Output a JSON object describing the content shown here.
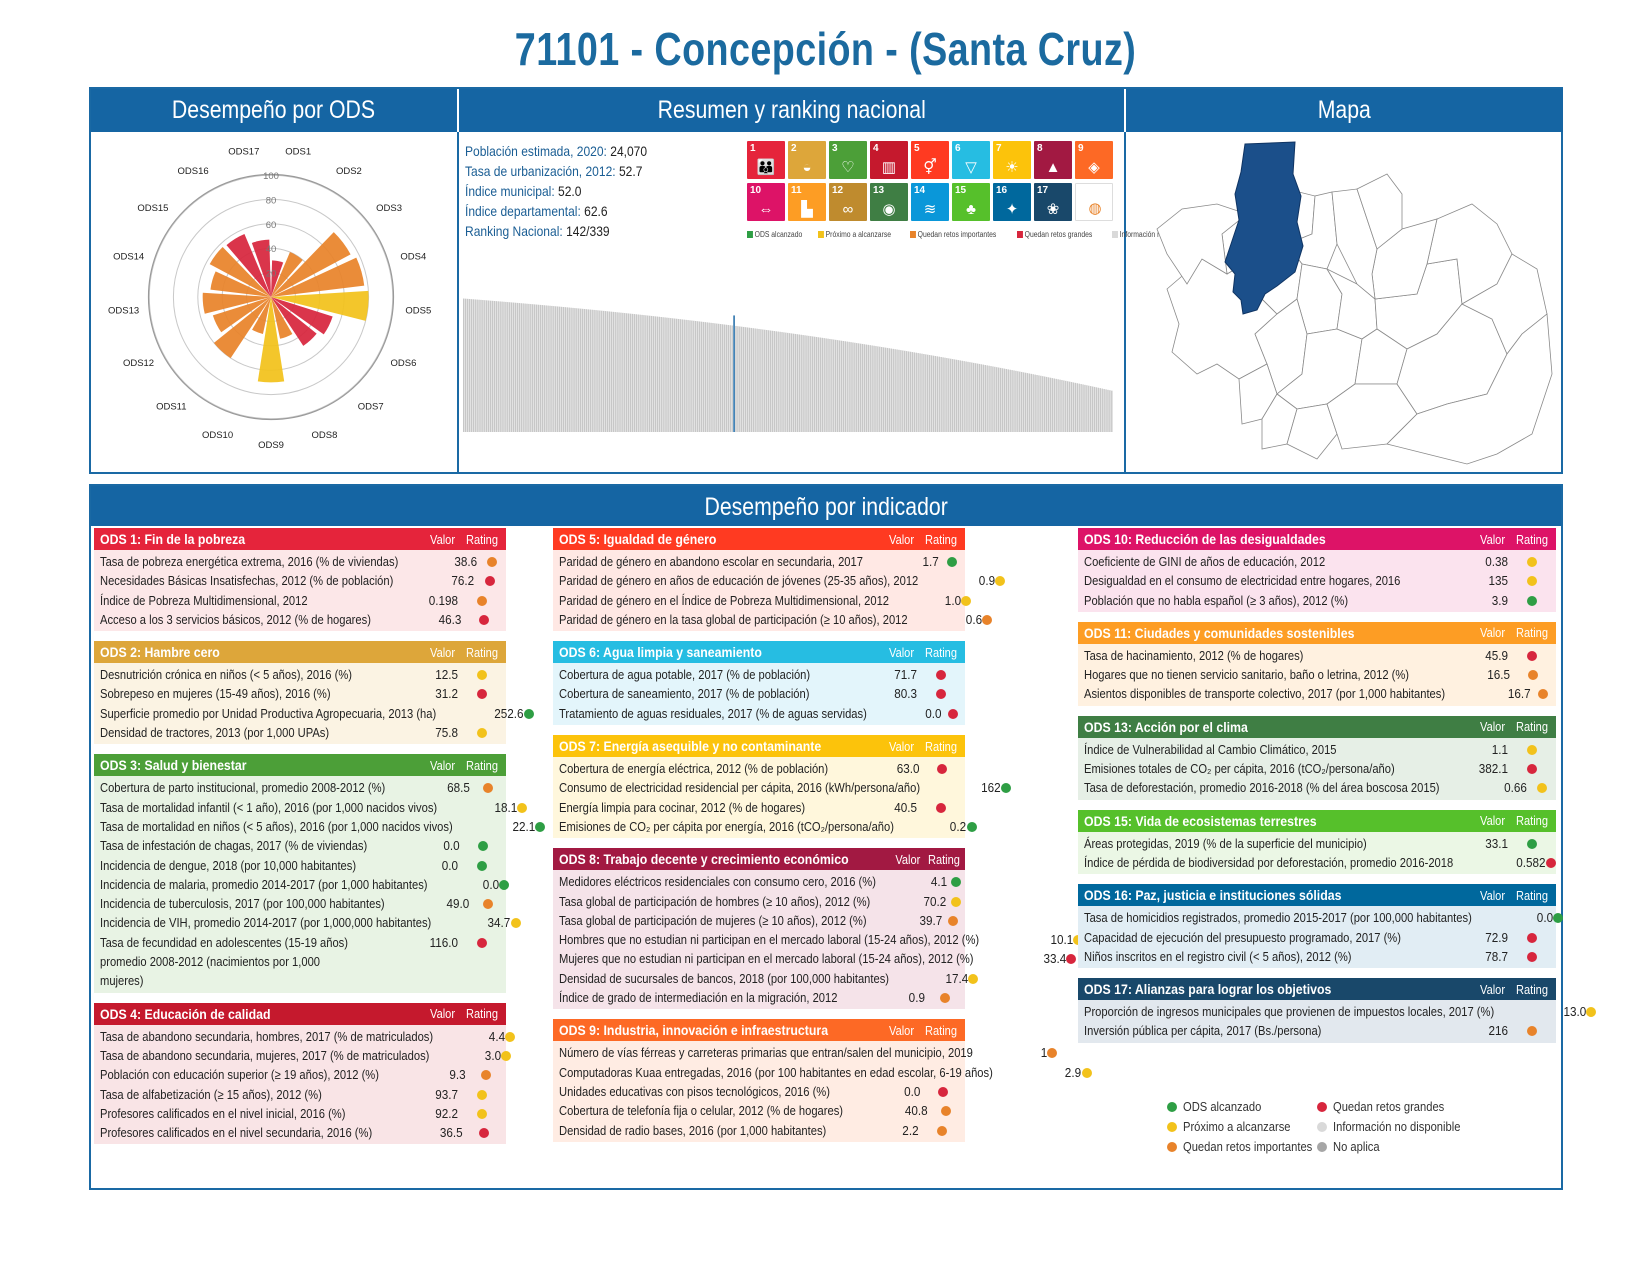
{
  "title": "71101 - Concepción - (Santa Cruz)",
  "top_sections": {
    "ods": "Desempeño por ODS",
    "summary": "Resumen y ranking nacional",
    "map": "Mapa"
  },
  "bottom_section_title": "Desempeño por indicador",
  "summary": {
    "rows": [
      {
        "label": "Población estimada, 2020:",
        "value": " 24,070"
      },
      {
        "label": "Tasa de urbanización, 2012:",
        "value": " 52.7"
      },
      {
        "label": "Índice municipal:",
        "value": " 52.0"
      },
      {
        "label": "Índice departamental:",
        "value": " 62.6"
      },
      {
        "label": "Ranking Nacional:",
        "value": " 142/339"
      }
    ]
  },
  "colors": {
    "brand_blue": "#1565a3",
    "green": "#2e9e44",
    "yellow": "#f2c21b",
    "orange": "#e8832a",
    "red": "#d7263d",
    "light_gray": "#d9d9d9",
    "gray": "#a6a6a6"
  },
  "sdg_tiles": [
    {
      "num": "1",
      "color": "#e5243b",
      "icon": "people-icon",
      "glyph": "👪"
    },
    {
      "num": "2",
      "color": "#dda63a",
      "icon": "bowl-icon",
      "glyph": "◒"
    },
    {
      "num": "3",
      "color": "#4c9f38",
      "icon": "heartbeat-icon",
      "glyph": "♡"
    },
    {
      "num": "4",
      "color": "#c5192d",
      "icon": "book-icon",
      "glyph": "▥"
    },
    {
      "num": "5",
      "color": "#ff3a21",
      "icon": "gender-icon",
      "glyph": "⚥"
    },
    {
      "num": "6",
      "color": "#26bde2",
      "icon": "water-icon",
      "glyph": "▽"
    },
    {
      "num": "7",
      "color": "#fcc30b",
      "icon": "sun-icon",
      "glyph": "☀"
    },
    {
      "num": "8",
      "color": "#a21942",
      "icon": "growth-chart-icon",
      "glyph": "▲"
    },
    {
      "num": "9",
      "color": "#fd6925",
      "icon": "cubes-icon",
      "glyph": "◈"
    },
    {
      "num": "10",
      "color": "#dd1367",
      "icon": "equality-icon",
      "glyph": "⇔"
    },
    {
      "num": "11",
      "color": "#fd9d24",
      "icon": "city-icon",
      "glyph": "▙"
    },
    {
      "num": "12",
      "color": "#bf8b2e",
      "icon": "infinity-icon",
      "glyph": "∞"
    },
    {
      "num": "13",
      "color": "#3f7e44",
      "icon": "eye-icon",
      "glyph": "◉"
    },
    {
      "num": "14",
      "color": "#0a97d9",
      "icon": "fish-icon",
      "glyph": "≋"
    },
    {
      "num": "15",
      "color": "#56c02b",
      "icon": "tree-icon",
      "glyph": "♣"
    },
    {
      "num": "16",
      "color": "#00689d",
      "icon": "dove-icon",
      "glyph": "✦"
    },
    {
      "num": "17",
      "color": "#19486a",
      "icon": "flower-icon",
      "glyph": "❀"
    },
    {
      "num": "",
      "color": "#ffffff",
      "icon": "sdg-wheel-icon",
      "glyph": "◍"
    }
  ],
  "sdg_legend": [
    {
      "label": "ODS alcanzado",
      "color": "#2e9e44"
    },
    {
      "label": "Próximo a alcanzarse",
      "color": "#f2c21b"
    },
    {
      "label": "Quedan retos importantes",
      "color": "#e8832a"
    },
    {
      "label": "Quedan retos grandes",
      "color": "#d7263d"
    },
    {
      "label": "Información no disponible",
      "color": "#d9d9d9"
    },
    {
      "label": "No aplica",
      "color": "#a6a6a6"
    }
  ],
  "chart_data": [
    {
      "type": "radar-bar",
      "title": "Desempeño por ODS",
      "rticks": [
        "20",
        "40",
        "60",
        "80",
        "100"
      ],
      "rlim": [
        0,
        100
      ],
      "categories": [
        "ODS1",
        "ODS2",
        "ODS3",
        "ODS4",
        "ODS5",
        "ODS6",
        "ODS7",
        "ODS8",
        "ODS9",
        "ODS10",
        "ODS11",
        "ODS12",
        "ODS13",
        "ODS14",
        "ODS15",
        "ODS16",
        "ODS17"
      ],
      "values": [
        30,
        40,
        74,
        77,
        80,
        53,
        48,
        35,
        70,
        31,
        60,
        50,
        56,
        50,
        57,
        56,
        47
      ],
      "colors": [
        "#d7263d",
        "#e8832a",
        "#e8832a",
        "#e8832a",
        "#f2c21b",
        "#d7263d",
        "#d7263d",
        "#e8832a",
        "#f2c21b",
        "#e8832a",
        "#e8832a",
        "#e8832a",
        "#e8832a",
        "#e8832a",
        "#e8832a",
        "#d7263d",
        "#d7263d"
      ]
    },
    {
      "type": "bar",
      "title": "Ranking nacional",
      "n_municipalities": 339,
      "highlight_rank": 142,
      "ylim": [
        0,
        100
      ],
      "value_range": [
        22,
        71
      ],
      "highlight_value": 52
    }
  ],
  "panels": {
    "col1": [
      {
        "title": "ODS 1: Fin de la pobreza",
        "color": "#e5243b",
        "bg": "#fce7e8",
        "rows": [
          {
            "name": "Tasa de pobreza energética extrema, 2016 (% de viviendas)",
            "value": "38.6",
            "rating": "orange"
          },
          {
            "name": "Necesidades Básicas Insatisfechas, 2012 (% de población)",
            "value": "76.2",
            "rating": "red"
          },
          {
            "name": "Índice de Pobreza Multidimensional, 2012",
            "value": "0.198",
            "rating": "orange"
          },
          {
            "name": "Acceso a los 3 servicios básicos, 2012 (% de hogares)",
            "value": "46.3",
            "rating": "red"
          }
        ]
      },
      {
        "title": "ODS 2: Hambre cero",
        "color": "#dda63a",
        "bg": "#fbf3e3",
        "rows": [
          {
            "name": "Desnutrición crónica en niños (< 5 años), 2016 (%)",
            "value": "12.5",
            "rating": "yellow"
          },
          {
            "name": "Sobrepeso en mujeres (15-49 años), 2016 (%)",
            "value": "31.2",
            "rating": "red"
          },
          {
            "name": "Superficie promedio por Unidad Productiva Agropecuaria, 2013 (ha)",
            "value": "252.6",
            "rating": "green"
          },
          {
            "name": "Densidad de tractores, 2013 (por 1,000 UPAs)",
            "value": "75.8",
            "rating": "yellow"
          }
        ]
      },
      {
        "title": "ODS 3: Salud y bienestar",
        "color": "#4c9f38",
        "bg": "#e8f3e4",
        "rows": [
          {
            "name": "Cobertura de parto institucional, promedio 2008-2012 (%)",
            "value": "68.5",
            "rating": "orange"
          },
          {
            "name": "Tasa de mortalidad infantil (< 1 año), 2016 (por 1,000 nacidos vivos)",
            "value": "18.1",
            "rating": "yellow"
          },
          {
            "name": "Tasa de mortalidad en niños (< 5 años), 2016 (por 1,000 nacidos vivos)",
            "value": "22.1",
            "rating": "green"
          },
          {
            "name": "Tasa de infestación de chagas, 2017 (% de viviendas)",
            "value": "0.0",
            "rating": "green"
          },
          {
            "name": "Incidencia de dengue, 2018 (por 10,000 habitantes)",
            "value": "0.0",
            "rating": "green"
          },
          {
            "name": "Incidencia de malaria, promedio 2014-2017 (por 1,000 habitantes)",
            "value": "0.0",
            "rating": "green"
          },
          {
            "name": "Incidencia de tuberculosis, 2017 (por 100,000 habitantes)",
            "value": "49.0",
            "rating": "orange"
          },
          {
            "name": "Incidencia de VIH, promedio 2014-2017 (por 1,000,000 habitantes)",
            "value": "34.7",
            "rating": "yellow"
          },
          {
            "name": "Tasa de fecundidad en adolescentes (15-19 años) promedio 2008-2012 (nacimientos por 1,000 mujeres)",
            "value": "116.0",
            "rating": "red",
            "tall": true
          }
        ]
      },
      {
        "title": "ODS 4: Educación de calidad",
        "color": "#c5192d",
        "bg": "#f9e4e6",
        "rows": [
          {
            "name": "Tasa de abandono secundaria, hombres, 2017 (% de matriculados)",
            "value": "4.4",
            "rating": "yellow"
          },
          {
            "name": "Tasa de abandono secundaria, mujeres, 2017 (% de matriculados)",
            "value": "3.0",
            "rating": "yellow"
          },
          {
            "name": "Población con educación superior (≥ 19 años), 2012 (%)",
            "value": "9.3",
            "rating": "orange"
          },
          {
            "name": "Tasa de alfabetización (≥ 15 años), 2012 (%)",
            "value": "93.7",
            "rating": "yellow"
          },
          {
            "name": "Profesores calificados en el nivel inicial, 2016 (%)",
            "value": "92.2",
            "rating": "yellow"
          },
          {
            "name": "Profesores calificados en el nivel secundaria, 2016 (%)",
            "value": "36.5",
            "rating": "red"
          }
        ]
      }
    ],
    "col2": [
      {
        "title": "ODS 5: Igualdad de género",
        "color": "#ff3a21",
        "bg": "#ffe8e4",
        "rows": [
          {
            "name": "Paridad de género en abandono escolar en secundaria, 2017",
            "value": "1.7",
            "rating": "green"
          },
          {
            "name": "Paridad de género en años de educación de jóvenes (25-35 años), 2012",
            "value": "0.9",
            "rating": "yellow"
          },
          {
            "name": "Paridad de género en el Índice de Pobreza Multidimensional, 2012",
            "value": "1.0",
            "rating": "yellow"
          },
          {
            "name": "Paridad de género en la tasa global de participación (≥ 10 años), 2012",
            "value": "0.6",
            "rating": "orange"
          }
        ]
      },
      {
        "title": "ODS 6: Agua limpia y saneamiento",
        "color": "#26bde2",
        "bg": "#e3f5fb",
        "rows": [
          {
            "name": "Cobertura de agua potable, 2017 (% de población)",
            "value": "71.7",
            "rating": "red"
          },
          {
            "name": "Cobertura de saneamiento, 2017 (% de población)",
            "value": "80.3",
            "rating": "red"
          },
          {
            "name": "Tratamiento de aguas residuales, 2017 (% de aguas servidas)",
            "value": "0.0",
            "rating": "red"
          }
        ]
      },
      {
        "title": "ODS 7: Energía asequible y no contaminante",
        "color": "#fcc30b",
        "bg": "#fff7dc",
        "rows": [
          {
            "name": "Cobertura de energía eléctrica, 2012 (% de población)",
            "value": "63.0",
            "rating": "red"
          },
          {
            "name": "Consumo de electricidad residencial per cápita, 2016 (kWh/persona/año)",
            "value": "162",
            "rating": "green"
          },
          {
            "name": "Energía limpia para cocinar, 2012 (% de hogares)",
            "value": "40.5",
            "rating": "red"
          },
          {
            "name": "Emisiones de CO₂ per cápita por energía, 2016 (tCO₂/persona/año)",
            "value": "0.2",
            "rating": "green"
          }
        ]
      },
      {
        "title": "ODS 8: Trabajo decente y crecimiento económico",
        "color": "#a21942",
        "bg": "#f5e3e9",
        "rows": [
          {
            "name": "Medidores eléctricos residenciales con consumo cero, 2016 (%)",
            "value": "4.1",
            "rating": "green"
          },
          {
            "name": "Tasa global de participación de hombres (≥ 10 años), 2012 (%)",
            "value": "70.2",
            "rating": "yellow"
          },
          {
            "name": "Tasa global de participación de mujeres (≥ 10 años), 2012 (%)",
            "value": "39.7",
            "rating": "orange"
          },
          {
            "name": "Hombres que no estudian ni participan en el mercado laboral (15-24 años), 2012 (%)",
            "value": "10.1",
            "rating": "yellow"
          },
          {
            "name": "Mujeres que no estudian ni participan en el mercado laboral (15-24 años), 2012 (%)",
            "value": "33.4",
            "rating": "red"
          },
          {
            "name": "Densidad de sucursales de bancos, 2018 (por 100,000 habitantes)",
            "value": "17.4",
            "rating": "yellow"
          },
          {
            "name": "Índice de grado de intermediación en la migración, 2012",
            "value": "0.9",
            "rating": "orange"
          }
        ]
      },
      {
        "title": "ODS 9: Industria, innovación e infraestructura",
        "color": "#fd6925",
        "bg": "#ffece3",
        "rows": [
          {
            "name": "Número de vías férreas y carreteras primarias que entran/salen del municipio, 2019",
            "value": "1",
            "rating": "orange"
          },
          {
            "name": "Computadoras Kuaa entregadas, 2016 (por 100 habitantes en edad escolar, 6-19 años)",
            "value": "2.9",
            "rating": "yellow"
          },
          {
            "name": "Unidades educativas con pisos tecnológicos, 2016 (%)",
            "value": "0.0",
            "rating": "red"
          },
          {
            "name": "Cobertura de telefonía fija o celular, 2012 (% de hogares)",
            "value": "40.8",
            "rating": "orange"
          },
          {
            "name": "Densidad de radio bases, 2016 (por 1,000 habitantes)",
            "value": "2.2",
            "rating": "orange"
          }
        ]
      }
    ],
    "col3": [
      {
        "title": "ODS 10: Reducción de las desigualdades",
        "color": "#dd1367",
        "bg": "#fbe3ee",
        "rows": [
          {
            "name": "Coeficiente de GINI de años de educación, 2012",
            "value": "0.38",
            "rating": "yellow"
          },
          {
            "name": "Desigualdad en el consumo de electricidad entre hogares, 2016",
            "value": "135",
            "rating": "yellow"
          },
          {
            "name": "Población que no habla español (≥ 3 años), 2012 (%)",
            "value": "3.9",
            "rating": "green"
          }
        ]
      },
      {
        "title": "ODS 11: Ciudades y comunidades sostenibles",
        "color": "#fd9d24",
        "bg": "#fff1e0",
        "rows": [
          {
            "name": "Tasa de hacinamiento, 2012 (% de hogares)",
            "value": "45.9",
            "rating": "red"
          },
          {
            "name": "Hogares que no tienen servicio sanitario, baño o letrina, 2012 (%)",
            "value": "16.5",
            "rating": "orange"
          },
          {
            "name": "Asientos disponibles de transporte colectivo, 2017 (por 1,000 habitantes)",
            "value": "16.7",
            "rating": "orange"
          }
        ]
      },
      {
        "title": "ODS 13: Acción por el clima",
        "color": "#3f7e44",
        "bg": "#e6efe6",
        "rows": [
          {
            "name": "Índice de Vulnerabilidad al Cambio Climático, 2015",
            "value": "1.1",
            "rating": "yellow"
          },
          {
            "name": "Emisiones totales de CO₂ per cápita, 2016 (tCO₂/persona/año)",
            "value": "382.1",
            "rating": "red"
          },
          {
            "name": "Tasa de deforestación, promedio 2016-2018 (% del área boscosa 2015)",
            "value": "0.66",
            "rating": "yellow"
          }
        ]
      },
      {
        "title": "ODS 15: Vida de ecosistemas terrestres",
        "color": "#56c02b",
        "bg": "#ebf7e5",
        "rows": [
          {
            "name": "Áreas protegidas, 2019 (% de la superficie del municipio)",
            "value": "33.1",
            "rating": "green"
          },
          {
            "name": "Índice de pérdida de biodiversidad por deforestación, promedio 2016-2018",
            "value": "0.582",
            "rating": "red"
          }
        ]
      },
      {
        "title": "ODS 16: Paz, justicia e instituciones sólidas",
        "color": "#00689d",
        "bg": "#e1edf4",
        "rows": [
          {
            "name": "Tasa de homicidios registrados, promedio 2015-2017 (por 100,000 habitantes)",
            "value": "0.0",
            "rating": "green"
          },
          {
            "name": "Capacidad de ejecución del presupuesto programado, 2017 (%)",
            "value": "72.9",
            "rating": "red"
          },
          {
            "name": "Niños inscritos en el registro civil (< 5 años), 2012 (%)",
            "value": "78.7",
            "rating": "red"
          }
        ]
      },
      {
        "title": "ODS 17: Alianzas para lograr los objetivos",
        "color": "#19486a",
        "bg": "#e2e8ee",
        "rows": [
          {
            "name": "Proporción de ingresos municipales que provienen de impuestos locales, 2017 (%)",
            "value": "13.0",
            "rating": "yellow"
          },
          {
            "name": "Inversión pública per cápita, 2017 (Bs./persona)",
            "value": "216",
            "rating": "orange"
          }
        ]
      }
    ]
  },
  "panel_headers": {
    "value": "Valor",
    "rating": "Rating"
  },
  "legend": [
    {
      "label": "ODS alcanzado",
      "color": "#2e9e44"
    },
    {
      "label": "Próximo a alcanzarse",
      "color": "#f2c21b"
    },
    {
      "label": "Quedan retos importantes",
      "color": "#e8832a"
    },
    {
      "label": "Quedan retos grandes",
      "color": "#d7263d"
    },
    {
      "label": "Información no disponible",
      "color": "#d9d9d9"
    },
    {
      "label": "No aplica",
      "color": "#a6a6a6"
    }
  ]
}
